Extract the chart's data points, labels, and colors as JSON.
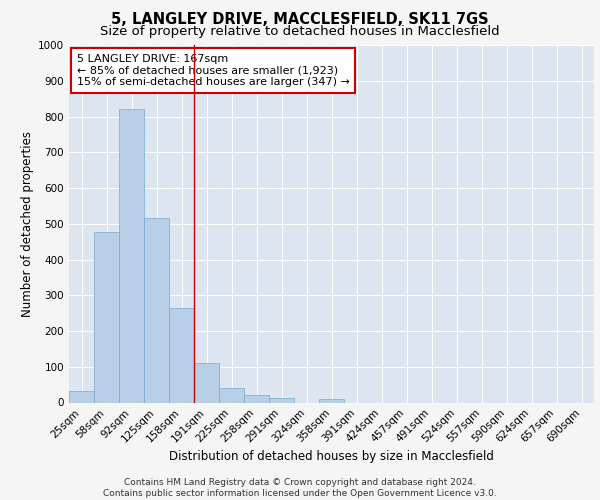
{
  "title_line1": "5, LANGLEY DRIVE, MACCLESFIELD, SK11 7GS",
  "title_line2": "Size of property relative to detached houses in Macclesfield",
  "xlabel": "Distribution of detached houses by size in Macclesfield",
  "ylabel": "Number of detached properties",
  "categories": [
    "25sqm",
    "58sqm",
    "92sqm",
    "125sqm",
    "158sqm",
    "191sqm",
    "225sqm",
    "258sqm",
    "291sqm",
    "324sqm",
    "358sqm",
    "391sqm",
    "424sqm",
    "457sqm",
    "491sqm",
    "524sqm",
    "557sqm",
    "590sqm",
    "624sqm",
    "657sqm",
    "690sqm"
  ],
  "values": [
    33,
    478,
    820,
    515,
    265,
    110,
    40,
    22,
    12,
    0,
    10,
    0,
    0,
    0,
    0,
    0,
    0,
    0,
    0,
    0,
    0
  ],
  "bar_color": "#b8cfe8",
  "bar_edge_color": "#7aaad0",
  "vline_x": 4.5,
  "vline_color": "#cc0000",
  "annotation_text": "5 LANGLEY DRIVE: 167sqm\n← 85% of detached houses are smaller (1,923)\n15% of semi-detached houses are larger (347) →",
  "annotation_box_color": "#ffffff",
  "annotation_box_edge_color": "#cc0000",
  "ylim": [
    0,
    1000
  ],
  "yticks": [
    0,
    100,
    200,
    300,
    400,
    500,
    600,
    700,
    800,
    900,
    1000
  ],
  "background_color": "#dde5f0",
  "grid_color": "#ffffff",
  "fig_bg_color": "#f5f5f5",
  "footer_text": "Contains HM Land Registry data © Crown copyright and database right 2024.\nContains public sector information licensed under the Open Government Licence v3.0.",
  "title_fontsize": 10.5,
  "subtitle_fontsize": 9.5,
  "axis_label_fontsize": 8.5,
  "tick_fontsize": 7.5,
  "annotation_fontsize": 8,
  "footer_fontsize": 6.5
}
